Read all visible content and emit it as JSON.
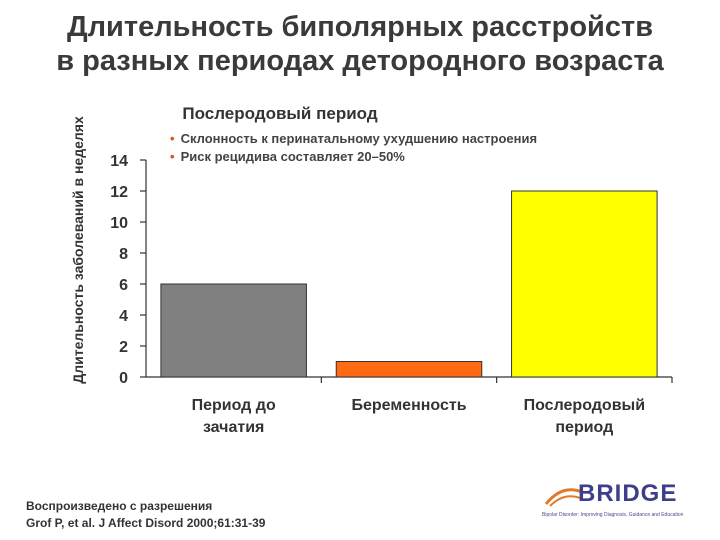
{
  "title_lines": [
    "Длительность биполярных расстройств",
    "в разных периодах детородного возраста"
  ],
  "subtitle": "Послеродовый период",
  "bullets": [
    "Склонность к перинатальному ухудшению настроения",
    "Риск рецидива составляет 20–50%"
  ],
  "credit": [
    "Воспроизведено с разрешения",
    "Grof P, et al. J Affect Disord 2000;61:31-39"
  ],
  "logo": {
    "word": "BRIDGE",
    "tagline": "Bipolar Disorder: Improving Diagnosis, Guidance and Education"
  },
  "chart_data": {
    "type": "bar",
    "ylabel": "Длительность заболеваний в неделях",
    "ylim": [
      0,
      14
    ],
    "yticks": [
      0,
      2,
      4,
      6,
      8,
      10,
      12,
      14
    ],
    "categories": [
      "Период до зачатия",
      "Беременность",
      "Послеродовый период"
    ],
    "category_lines": [
      [
        "Период до",
        "зачатия"
      ],
      [
        "Беременность"
      ],
      [
        "Послеродовый",
        "период"
      ]
    ],
    "values": [
      6,
      1,
      12
    ],
    "colors": [
      "#808080",
      "#ff6a13",
      "#ffff00"
    ],
    "grid": false
  }
}
